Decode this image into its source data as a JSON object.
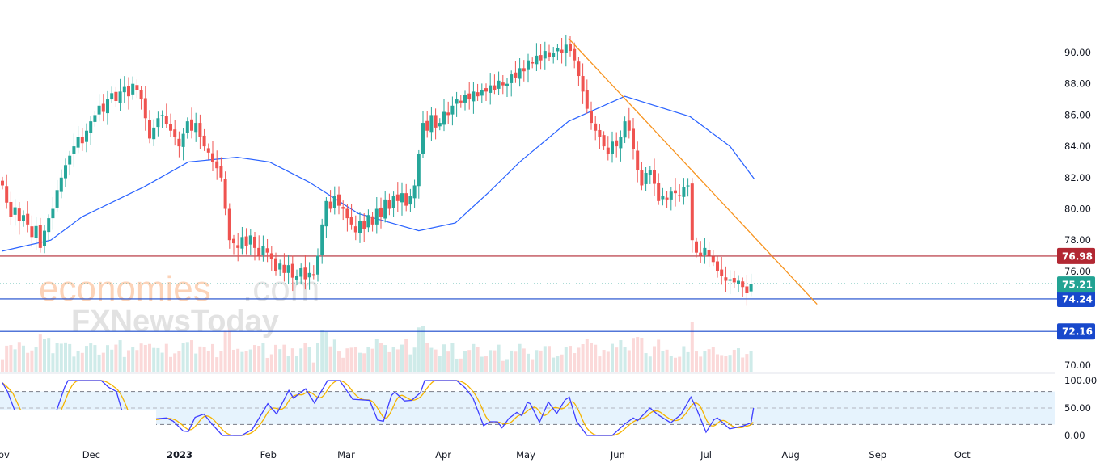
{
  "chart_data": {
    "type": "candlestick",
    "title": "",
    "price_axis": {
      "min": 70,
      "max": 90,
      "ticks": [
        "90.00",
        "88.00",
        "86.00",
        "84.00",
        "82.00",
        "80.00",
        "78.00",
        "76.00",
        "70.00"
      ],
      "tick_values": [
        90,
        88,
        86,
        84,
        82,
        80,
        78,
        76,
        70
      ]
    },
    "time_axis": {
      "labels": [
        "ov",
        "Dec",
        "2023",
        "Feb",
        "Mar",
        "Apr",
        "May",
        "Jun",
        "Jul",
        "Aug",
        "Sep",
        "Oct"
      ],
      "label_day_index": [
        0,
        21.7,
        42.7,
        63.8,
        82.3,
        105.4,
        125,
        146.9,
        167.9,
        188,
        208.7,
        228.8
      ]
    },
    "closes": [
      81.5,
      80.4,
      79.5,
      80.1,
      79.2,
      79.6,
      79.0,
      78.2,
      78.9,
      77.5,
      78.6,
      79.4,
      80.0,
      81.2,
      82.0,
      82.8,
      83.4,
      84.0,
      84.6,
      84.2,
      85.0,
      85.6,
      86.0,
      86.6,
      86.2,
      87.0,
      87.4,
      86.9,
      87.5,
      87.8,
      87.2,
      88.0,
      87.6,
      87.0,
      85.8,
      84.5,
      85.2,
      85.8,
      86.0,
      85.4,
      85.0,
      84.6,
      84.0,
      84.8,
      85.6,
      85.0,
      85.5,
      84.6,
      84.0,
      83.6,
      83.0,
      82.6,
      82.0,
      80.0,
      78.0,
      77.8,
      77.5,
      78.2,
      77.6,
      78.3,
      77.5,
      77.0,
      77.6,
      77.2,
      76.8,
      76.0,
      76.5,
      75.9,
      76.4,
      75.6,
      75.7,
      76.2,
      75.5,
      75.9,
      75.8,
      77.0,
      79.0,
      80.5,
      80.0,
      80.8,
      80.2,
      80.0,
      79.4,
      79.0,
      78.5,
      79.2,
      78.7,
      79.6,
      79.0,
      80.0,
      79.5,
      80.6,
      80.0,
      80.8,
      80.5,
      81.0,
      80.2,
      80.8,
      81.5,
      83.5,
      85.5,
      85.0,
      86.0,
      85.2,
      85.5,
      86.2,
      86.0,
      86.6,
      87.0,
      86.8,
      87.3,
      87.0,
      87.5,
      87.2,
      87.6,
      87.5,
      87.9,
      87.6,
      88.2,
      87.9,
      88.0,
      88.6,
      88.4,
      89.0,
      88.8,
      89.5,
      89.3,
      89.8,
      89.5,
      90.1,
      89.7,
      90.0,
      90.3,
      90.0,
      90.5,
      90.1,
      89.5,
      88.5,
      87.5,
      86.4,
      85.5,
      85.0,
      84.6,
      84.0,
      83.5,
      84.3,
      84.0,
      84.6,
      85.6,
      85.0,
      83.8,
      82.5,
      81.5,
      82.3,
      82.5,
      81.6,
      80.5,
      80.8,
      80.6,
      81.1,
      81.0,
      80.8,
      81.4,
      81.5,
      78.0,
      77.2,
      77.0,
      77.5,
      77.0,
      76.6,
      76.0,
      75.7,
      75.4,
      75.5,
      75.3,
      75.4,
      75.0,
      74.6,
      75.21
    ],
    "moving_average": [
      [
        0,
        77.3
      ],
      [
        11.5,
        78.0
      ],
      [
        19,
        79.5
      ],
      [
        33.6,
        81.4
      ],
      [
        44.2,
        83.0
      ],
      [
        55.8,
        83.3
      ],
      [
        63.5,
        83.0
      ],
      [
        73,
        81.7
      ],
      [
        84.6,
        79.7
      ],
      [
        99,
        78.6
      ],
      [
        107.7,
        79.1
      ],
      [
        115.4,
        81.0
      ],
      [
        123,
        83.0
      ],
      [
        134.6,
        85.6
      ],
      [
        148,
        87.2
      ],
      [
        163.5,
        85.9
      ],
      [
        173,
        84.0
      ],
      [
        178.8,
        81.9
      ]
    ],
    "trendline": [
      [
        134.6,
        90.9
      ],
      [
        193.7,
        73.9
      ]
    ],
    "levels": [
      {
        "value": 76.98,
        "label": "76.98",
        "color": "#b22833"
      },
      {
        "value": 74.24,
        "label": "74.24",
        "color": "#1848cc"
      },
      {
        "value": 72.16,
        "label": "72.16",
        "color": "#1848cc"
      }
    ],
    "last_price": {
      "value": 75.21,
      "label": "75.21",
      "color": "#22a393"
    },
    "prev_close_line": 75.45,
    "stochastic": {
      "axis_labels": [
        "100.00",
        "50.00",
        "0.00"
      ],
      "axis_values": [
        100,
        50,
        0
      ],
      "upper": 80,
      "middle": 50,
      "lower": 20,
      "k": [
        [
          0,
          96
        ],
        [
          1.2,
          80
        ],
        [
          2.8,
          48
        ],
        [
          5,
          20
        ],
        [
          8,
          15
        ],
        [
          11,
          20
        ],
        [
          13,
          48
        ],
        [
          14.8,
          88
        ],
        [
          15.6,
          100
        ],
        [
          23.5,
          100
        ],
        [
          25.2,
          88
        ],
        [
          27.1,
          80
        ],
        [
          28.3,
          48
        ],
        [
          30,
          20
        ],
        [
          33,
          25
        ],
        [
          36,
          30
        ],
        [
          37.5,
          31
        ],
        [
          39,
          32
        ],
        [
          40.6,
          26
        ],
        [
          43,
          8
        ],
        [
          44.2,
          7
        ],
        [
          45.8,
          33
        ],
        [
          47.9,
          39
        ],
        [
          49.8,
          21
        ],
        [
          52.3,
          0
        ],
        [
          56.9,
          0
        ],
        [
          59.4,
          11
        ],
        [
          63.1,
          58
        ],
        [
          65.2,
          39
        ],
        [
          68.1,
          82
        ],
        [
          69.2,
          68
        ],
        [
          72.1,
          85
        ],
        [
          74.2,
          59
        ],
        [
          77.3,
          100
        ],
        [
          80.2,
          100
        ],
        [
          83.3,
          66
        ],
        [
          87.3,
          64
        ],
        [
          89.2,
          28
        ],
        [
          90.6,
          26
        ],
        [
          92.5,
          73
        ],
        [
          93.3,
          79
        ],
        [
          95.6,
          63
        ],
        [
          97.3,
          64
        ],
        [
          99.4,
          78
        ],
        [
          100.4,
          100
        ],
        [
          108,
          100
        ],
        [
          110,
          87
        ],
        [
          111.9,
          68
        ],
        [
          114.4,
          18
        ],
        [
          116,
          25
        ],
        [
          117.7,
          25
        ],
        [
          118.8,
          14
        ],
        [
          120.4,
          31
        ],
        [
          122.3,
          42
        ],
        [
          123.5,
          36
        ],
        [
          124.8,
          60
        ],
        [
          125.5,
          58
        ],
        [
          127.7,
          24
        ],
        [
          129.8,
          61
        ],
        [
          131.8,
          40
        ],
        [
          133.8,
          65
        ],
        [
          134.8,
          70
        ],
        [
          136.5,
          26
        ],
        [
          139,
          0
        ],
        [
          145,
          0
        ],
        [
          148,
          21
        ],
        [
          150,
          32
        ],
        [
          151,
          27
        ],
        [
          154,
          50
        ],
        [
          155.8,
          38
        ],
        [
          158.9,
          23
        ],
        [
          161.3,
          38
        ],
        [
          163.7,
          70
        ],
        [
          164.8,
          53
        ],
        [
          167.3,
          6
        ],
        [
          169.2,
          29
        ],
        [
          170,
          32
        ],
        [
          172.9,
          12
        ],
        [
          176,
          17
        ],
        [
          178,
          23
        ],
        [
          178.6,
          50
        ]
      ]
    },
    "colors": {
      "up": "#26a69a",
      "down": "#ef5350",
      "ma": "#2962ff",
      "trend": "#f7931e",
      "k": "#3d3dff",
      "d": "#f5b400"
    }
  },
  "watermark": {
    "brand1": "economies",
    "brand1_suffix": ".com",
    "brand2": "FXNewsToday"
  }
}
